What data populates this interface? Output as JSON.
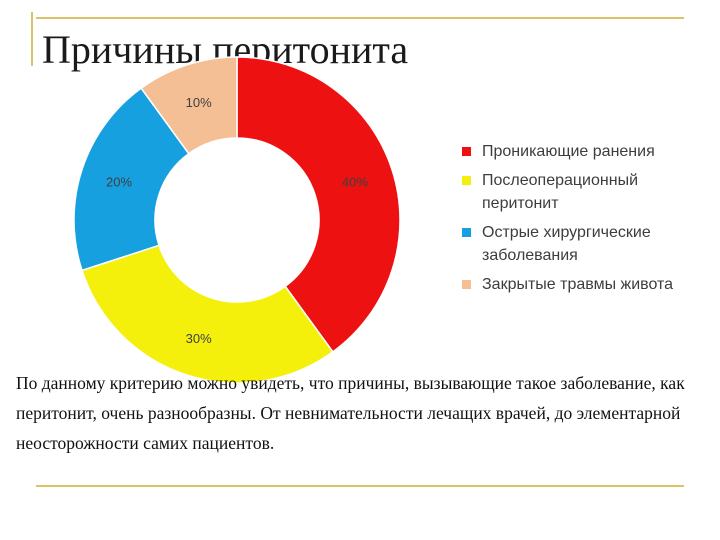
{
  "slide": {
    "title": "Причины перитонита",
    "body_text": "По данному критерию можно увидеть, что причины, вызывающие такое заболевание, как перитонит, очень разнообразны. От невнимательности лечащих врачей, до элементарной неосторожности самих пациентов."
  },
  "chart_data": {
    "type": "pie",
    "title": "",
    "donut": true,
    "legend_position": "right",
    "categories": [
      "Проникающие ранения",
      "Послеоперационный перитонит",
      "Острые хирургические заболевания",
      "Закрытые травмы живота"
    ],
    "values": [
      40,
      30,
      20,
      10
    ],
    "data_labels": [
      "40%",
      "30%",
      "20%",
      "10%"
    ],
    "colors": [
      "#ee1111",
      "#f4f00c",
      "#16a0e0",
      "#f5bf96"
    ]
  },
  "legend": {
    "items": [
      {
        "label": "Проникающие ранения",
        "color": "#ee1111"
      },
      {
        "label": "Послеоперационный перитонит",
        "color": "#f4f00c"
      },
      {
        "label": "Острые хирургические заболевания",
        "color": "#16a0e0"
      },
      {
        "label": "Закрытые травмы живота",
        "color": "#f5bf96"
      }
    ]
  }
}
